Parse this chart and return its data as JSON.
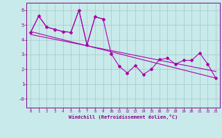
{
  "background_color": "#c8eaea",
  "grid_color": "#aacccc",
  "line_color": "#aa00aa",
  "xlabel": "Windchill (Refroidissement éolien,°C)",
  "xlim": [
    -0.5,
    23.5
  ],
  "ylim": [
    -0.6,
    6.5
  ],
  "yticks": [
    0,
    1,
    2,
    3,
    4,
    5,
    6
  ],
  "ytick_labels": [
    "-0",
    "1",
    "2",
    "3",
    "4",
    "5",
    "6"
  ],
  "xticks": [
    0,
    1,
    2,
    3,
    4,
    5,
    6,
    7,
    8,
    9,
    10,
    11,
    12,
    13,
    14,
    15,
    16,
    17,
    18,
    19,
    20,
    21,
    22,
    23
  ],
  "series1_x": [
    0,
    1,
    2,
    3,
    4,
    5,
    6,
    7,
    8,
    9,
    10,
    11,
    12,
    13,
    14,
    15,
    16,
    17,
    18,
    19,
    20,
    21,
    22,
    23
  ],
  "series1_y": [
    4.5,
    5.6,
    4.85,
    4.7,
    4.55,
    4.5,
    6.0,
    3.65,
    5.55,
    5.4,
    3.05,
    2.2,
    1.75,
    2.25,
    1.65,
    2.0,
    2.65,
    2.75,
    2.35,
    2.6,
    2.6,
    3.1,
    2.35,
    1.4
  ],
  "series2_x": [
    0,
    1,
    2,
    3,
    4,
    5,
    6,
    7
  ],
  "series2_y": [
    4.5,
    5.6,
    4.85,
    4.7,
    4.55,
    4.5,
    6.0,
    3.65
  ],
  "series3_x": [
    7,
    8,
    9
  ],
  "series3_y": [
    3.65,
    5.55,
    5.4
  ],
  "series4_x": [
    0,
    23
  ],
  "series4_y": [
    4.55,
    1.4
  ],
  "series5_x": [
    0,
    23
  ],
  "series5_y": [
    4.35,
    1.85
  ]
}
